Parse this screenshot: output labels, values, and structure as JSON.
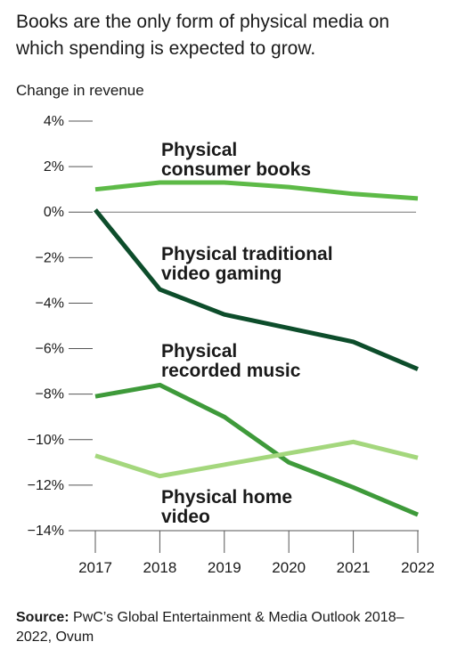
{
  "chart_data": {
    "type": "line",
    "title": "Books are the only form of physical media on which spending is expected to grow.",
    "ylabel": "Change in revenue",
    "xlabel": "",
    "x": [
      "2017",
      "2018",
      "2019",
      "2020",
      "2021",
      "2022"
    ],
    "ylim": [
      -14,
      4
    ],
    "yticks": [
      4,
      2,
      0,
      -2,
      -4,
      -6,
      -8,
      -10,
      -12,
      -14
    ],
    "ytick_labels": [
      "4%",
      "2%",
      "0%",
      "−2%",
      "−4%",
      "−6%",
      "−8%",
      "−10%",
      "−12%",
      "−14%"
    ],
    "zero_line": true,
    "grid": false,
    "series": [
      {
        "name_lines": [
          "Physical",
          "consumer books"
        ],
        "color": "#5dba47",
        "values": [
          1.0,
          1.3,
          1.3,
          1.1,
          0.8,
          0.6
        ]
      },
      {
        "name_lines": [
          "Physical traditional",
          "video gaming"
        ],
        "color": "#0d4d2b",
        "values": [
          0.1,
          -3.4,
          -4.5,
          -5.1,
          -5.7,
          -6.9
        ]
      },
      {
        "name_lines": [
          "Physical",
          "recorded music"
        ],
        "color": "#3e9a3a",
        "values": [
          -8.1,
          -7.6,
          -9.0,
          -11.0,
          -12.1,
          -13.3
        ]
      },
      {
        "name_lines": [
          "Physical home",
          "video"
        ],
        "color": "#a4d77d",
        "values": [
          -10.7,
          -11.6,
          -11.1,
          -10.6,
          -10.1,
          -10.8
        ]
      }
    ]
  },
  "source": {
    "label": "Source:",
    "text": " PwC’s Global Entertainment & Media Outlook 2018–2022, Ovum"
  }
}
